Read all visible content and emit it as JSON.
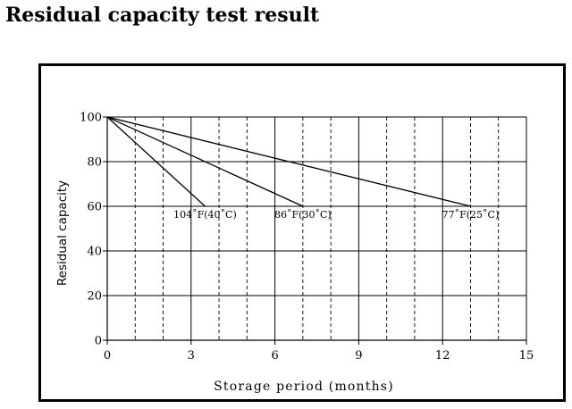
{
  "page": {
    "title": "Residual capacity test result"
  },
  "chart_data": {
    "type": "line",
    "title": "Residual capacity test result",
    "xlabel": "Storage period (months)",
    "ylabel": "Residual capacity",
    "xlim": [
      0,
      15
    ],
    "ylim": [
      0,
      100
    ],
    "x_ticks": [
      0,
      3,
      6,
      9,
      12,
      15
    ],
    "y_ticks": [
      0,
      20,
      40,
      60,
      80,
      100
    ],
    "grid": {
      "horizontal_solid": true,
      "vertical_solid_every": 3,
      "vertical_dashed_every": 1
    },
    "series": [
      {
        "name": "104˚F(40˚C)",
        "x": [
          0,
          3.5
        ],
        "y": [
          100,
          60
        ]
      },
      {
        "name": "86˚F(30˚C)",
        "x": [
          0,
          7
        ],
        "y": [
          100,
          60
        ]
      },
      {
        "name": "77˚F(25˚C)",
        "x": [
          0,
          13
        ],
        "y": [
          100,
          60
        ]
      }
    ],
    "colors": {
      "line": "#000000",
      "grid": "#000000",
      "background": "#ffffff"
    }
  }
}
